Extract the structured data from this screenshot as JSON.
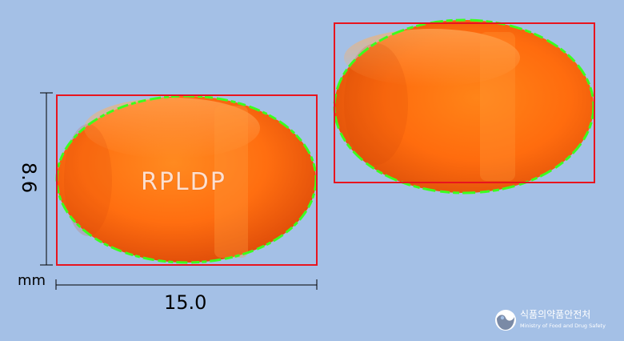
{
  "image": {
    "background_color": "#a4c0e6",
    "subject": "orange softgel capsule, front and back views"
  },
  "pill_front": {
    "imprint": "RPLDP",
    "color": "#ff7a12"
  },
  "pill_back": {
    "color": "#ff7a12"
  },
  "bounding_box_color": "#e8141e",
  "outline_color": "#3cff1e",
  "dimensions": {
    "height_value": "8.6",
    "width_value": "15.0",
    "unit": "mm"
  },
  "watermark": {
    "korean_name": "식품의약품안전처",
    "english_name": "Ministry of Food and Drug Safety"
  }
}
